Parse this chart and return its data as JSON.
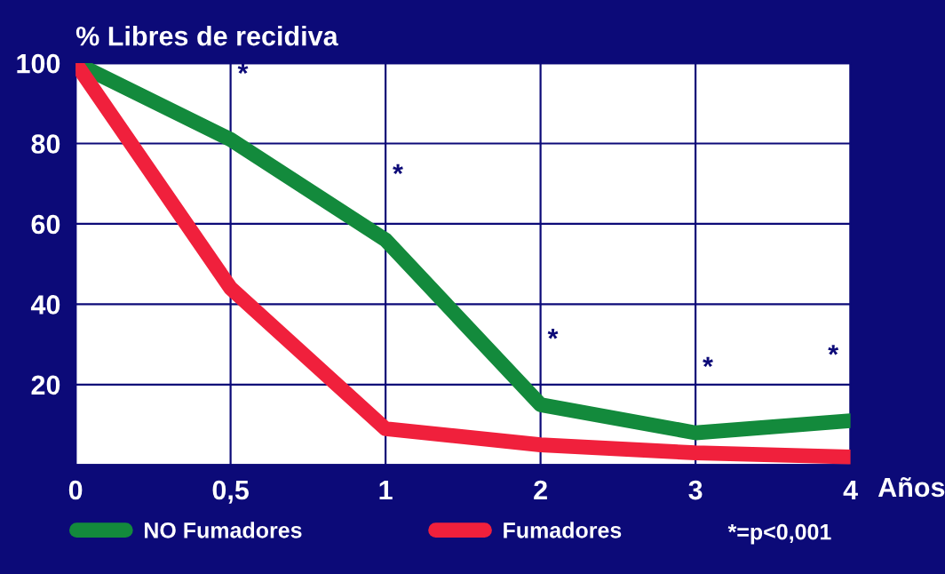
{
  "chart_data": {
    "type": "line",
    "ylabel": "% Libres de recidiva",
    "xlabel": "Años",
    "categories": [
      "0",
      "0,5",
      "1",
      "2",
      "3",
      "4"
    ],
    "series": [
      {
        "name": "NO Fumadores",
        "color": "#138a3c",
        "values": [
          100,
          81,
          56,
          15,
          8,
          11
        ]
      },
      {
        "name": "Fumadores",
        "color": "#f0203c",
        "values": [
          100,
          44,
          9,
          5,
          3,
          2
        ]
      }
    ],
    "ylim": [
      0,
      100
    ],
    "yticks": [
      {
        "value": 0,
        "label": null
      },
      20,
      40,
      60,
      80,
      100
    ],
    "grid": true,
    "legend": "bottom",
    "marker": "none",
    "line_style": "solid",
    "annotations": [
      "*",
      "*",
      "*",
      "*",
      "*",
      "*=p<0,001"
    ]
  }
}
